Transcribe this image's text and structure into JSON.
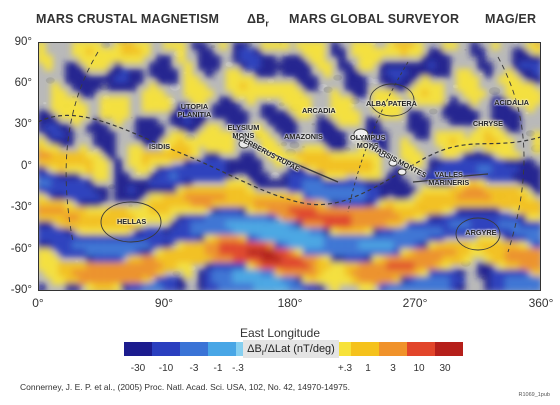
{
  "header": {
    "left": "MARS CRUSTAL MAGNETISM",
    "delta_symbol": "ΔB",
    "delta_sub": "r",
    "center": "MARS GLOBAL SURVEYOR",
    "right": "MAG/ER"
  },
  "y_ticks": [
    "90°",
    "60°",
    "30°",
    "0°",
    "-30°",
    "-60°",
    "-90°"
  ],
  "x_ticks": [
    "0°",
    "90°",
    "180°",
    "270°",
    "360°"
  ],
  "x_axis_title": "East Longitude",
  "colorbar": {
    "label_pre": "ΔB",
    "label_sub": "r",
    "label_post": "/ΔLat (nT/deg)",
    "negative_ticks": [
      "-30",
      "-10",
      "-3",
      "-1",
      "-.3"
    ],
    "positive_ticks": [
      "+.3",
      "1",
      "3",
      "10",
      "30"
    ],
    "negative_colors": [
      "#1c1c8e",
      "#2a3fbf",
      "#3a73d6",
      "#48a6e6",
      "#86cff0"
    ],
    "positive_colors": [
      "#f7e23a",
      "#f5c21c",
      "#f0922a",
      "#e2452a",
      "#b51f1a"
    ]
  },
  "regions": [
    {
      "name": "UTOPIA\nPLANITIA",
      "lon": 112,
      "lat": 40
    },
    {
      "name": "ELYSIUM\nMONS",
      "lon": 147,
      "lat": 25
    },
    {
      "name": "ISIDIS",
      "lon": 87,
      "lat": 14
    },
    {
      "name": "CERBERUS RUPAE",
      "lon": 165,
      "lat": 9
    },
    {
      "name": "ARCADIA",
      "lon": 201,
      "lat": 40
    },
    {
      "name": "AMAZONIS",
      "lon": 190,
      "lat": 21
    },
    {
      "name": "ALBA PATERA",
      "lon": 253,
      "lat": 45
    },
    {
      "name": "OLYMPUS\nMONS",
      "lon": 236,
      "lat": 18
    },
    {
      "name": "THARSIS MONTES",
      "lon": 257,
      "lat": 4
    },
    {
      "name": "VALLES\nMARINERIS",
      "lon": 294,
      "lat": -9
    },
    {
      "name": "ACIDALIA",
      "lon": 339,
      "lat": 46
    },
    {
      "name": "CHRYSE",
      "lon": 322,
      "lat": 31
    },
    {
      "name": "HELLAS",
      "lon": 67,
      "lat": -40
    },
    {
      "name": "ARGYRE",
      "lon": 317,
      "lat": -48
    }
  ],
  "citation": "Connerney, J. E. P. et al., (2005) Proc. Natl. Acad. Sci. USA, 102, No. 42, 14970-14975.",
  "figure_id": "R1069_1pub"
}
